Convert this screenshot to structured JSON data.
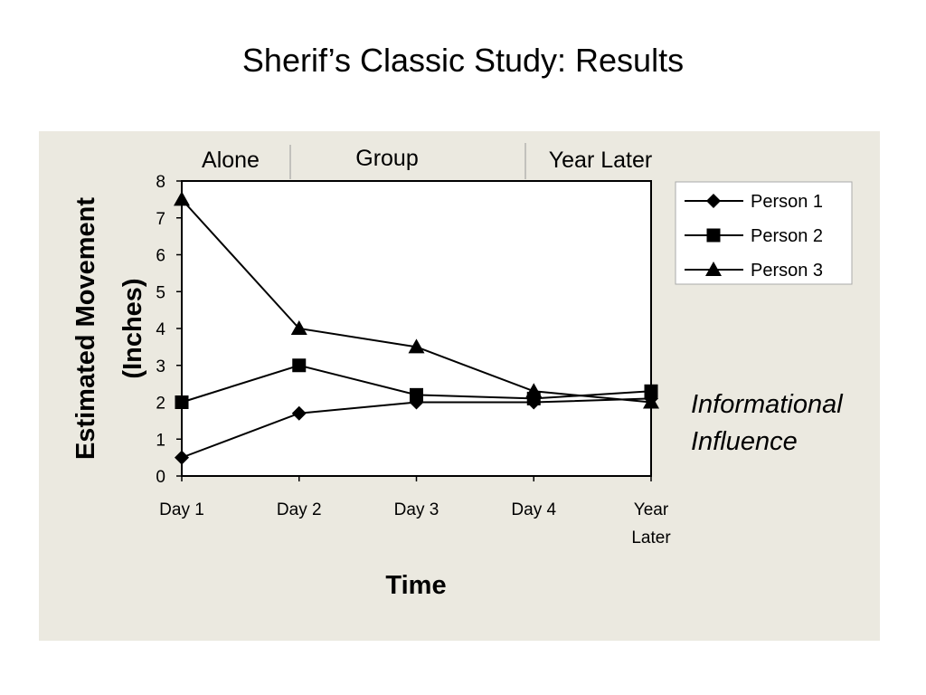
{
  "slide": {
    "title": "Sherif’s Classic Study: Results"
  },
  "chart_data": {
    "type": "line",
    "title": "",
    "phases": [
      "Alone",
      "Group",
      "Year Later"
    ],
    "categories": [
      "Day 1",
      "Day 2",
      "Day 3",
      "Day 4",
      "Year Later"
    ],
    "xlabel": "Time",
    "ylabel": "Estimated Movement (Inches)",
    "ylabel_lines": [
      "Estimated Movement",
      "(Inches)"
    ],
    "ylim": [
      0,
      8
    ],
    "yticks": [
      0,
      1,
      2,
      3,
      4,
      5,
      6,
      7,
      8
    ],
    "grid": false,
    "legend": "right",
    "series": [
      {
        "name": "Person 1",
        "marker": "diamond",
        "values": [
          0.5,
          1.7,
          2.0,
          2.0,
          2.1
        ]
      },
      {
        "name": "Person 2",
        "marker": "square",
        "values": [
          2.0,
          3.0,
          2.2,
          2.1,
          2.3
        ]
      },
      {
        "name": "Person 3",
        "marker": "triangle",
        "values": [
          7.5,
          4.0,
          3.5,
          2.3,
          2.0
        ]
      }
    ],
    "annotation_lines": [
      "Informational",
      "Influence"
    ]
  }
}
